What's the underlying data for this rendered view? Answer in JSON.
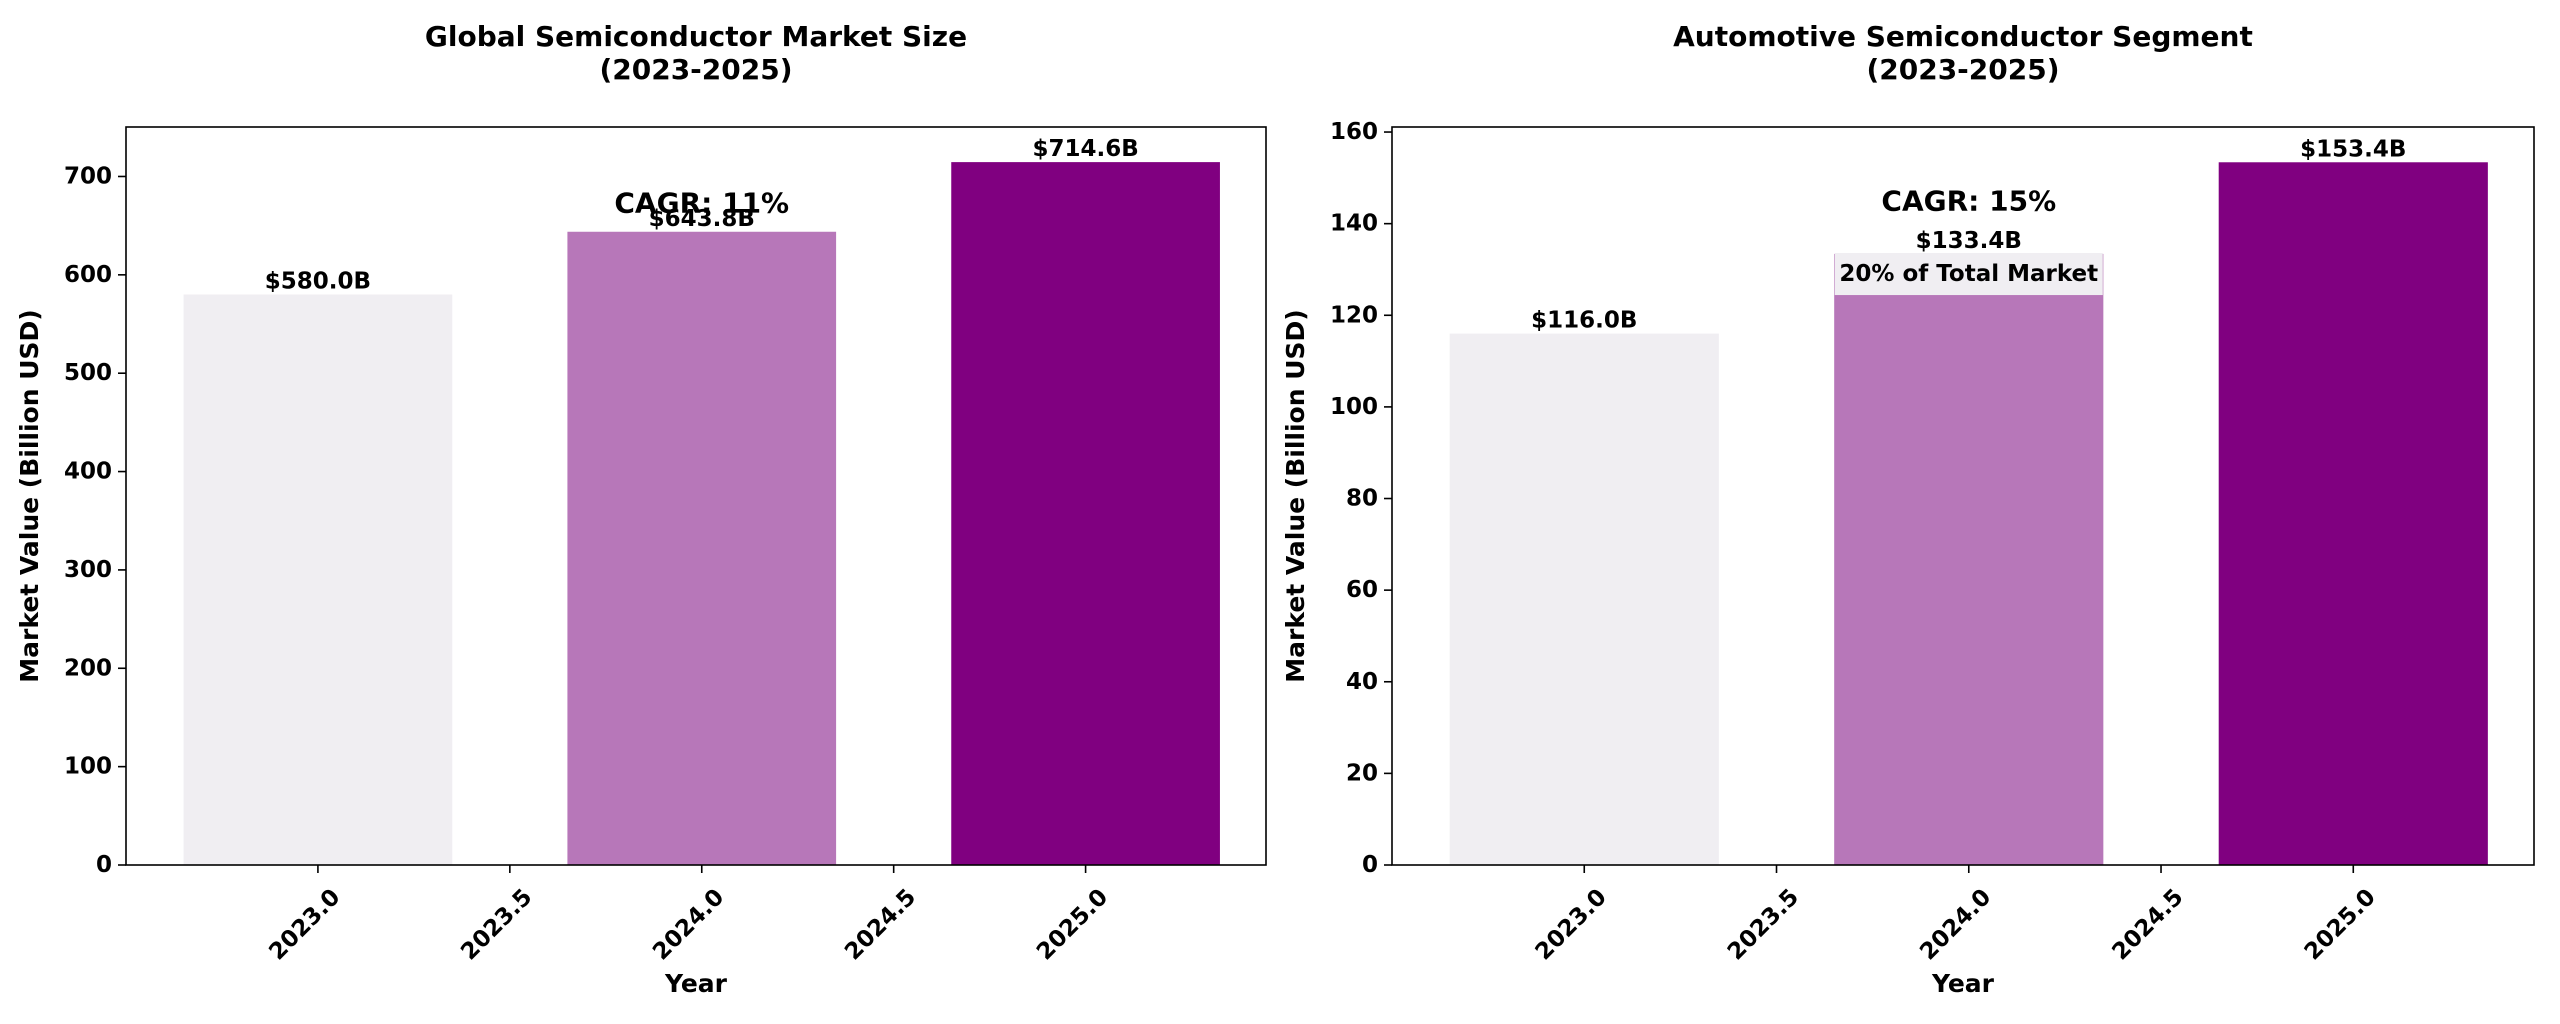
{
  "colors": {
    "bar_2023": "#f0eef2",
    "bar_2024": "#b777b9",
    "bar_2025": "#800080",
    "annotation_box": "#f0eef2"
  },
  "chart_data": [
    {
      "type": "bar",
      "title_line1": "Global Semiconductor Market Size",
      "title_line2": "(2023-2025)",
      "xlabel": "Year",
      "ylabel": "Market Value (Billion USD)",
      "x": [
        2023,
        2024,
        2025
      ],
      "values": [
        580.0,
        643.8,
        714.6
      ],
      "value_labels": [
        "$580.0B",
        "$643.8B",
        "$714.6B"
      ],
      "bar_colors": [
        "#f0eef2",
        "#b777b9",
        "#800080"
      ],
      "xlim": [
        2022.5,
        2025.47
      ],
      "xticks": [
        "2023.0",
        "2023.5",
        "2024.0",
        "2024.5",
        "2025.0"
      ],
      "ylim": [
        0,
        750.3
      ],
      "yticks": [
        "0",
        "100",
        "200",
        "300",
        "400",
        "500",
        "600",
        "700"
      ],
      "annotations": [
        {
          "text": "CAGR: 11%",
          "x": 2024.0,
          "y": 673
        }
      ],
      "grid": false,
      "legend": "none"
    },
    {
      "type": "bar",
      "title_line1": "Automotive Semiconductor Segment",
      "title_line2": "(2023-2025)",
      "xlabel": "Year",
      "ylabel": "Market Value (Billion USD)",
      "x": [
        2023,
        2024,
        2025
      ],
      "values": [
        116.0,
        133.4,
        153.4
      ],
      "value_labels": [
        "$116.0B",
        "$133.4B",
        "$153.4B"
      ],
      "bar_colors": [
        "#f0eef2",
        "#b777b9",
        "#800080"
      ],
      "xlim": [
        2022.5,
        2025.47
      ],
      "xticks": [
        "2023.0",
        "2023.5",
        "2024.0",
        "2024.5",
        "2025.0"
      ],
      "ylim": [
        0,
        161.1
      ],
      "yticks": [
        "0",
        "20",
        "40",
        "60",
        "80",
        "100",
        "120",
        "140",
        "160"
      ],
      "annotations": [
        {
          "text": "CAGR: 15%",
          "x": 2024.0,
          "y": 145
        },
        {
          "text": "20% of Total Market",
          "x": 2024.0,
          "y": 129
        }
      ],
      "grid": false,
      "legend": "none"
    }
  ]
}
